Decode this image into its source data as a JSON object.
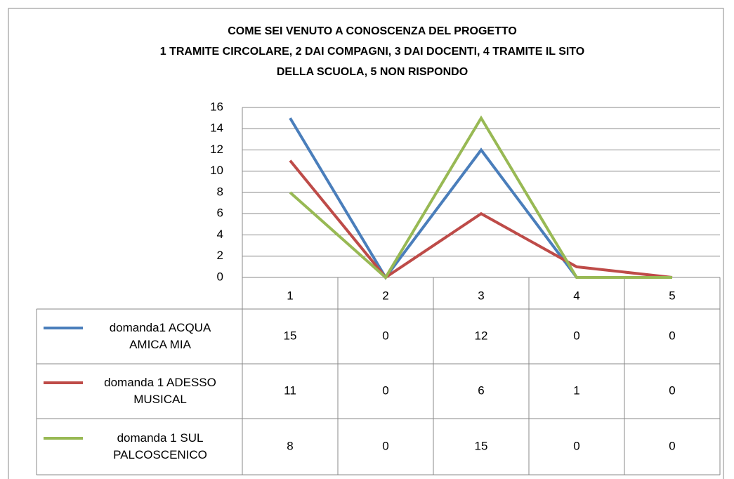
{
  "chart_data": {
    "type": "line",
    "title": [
      "COME SEI VENUTO A CONOSCENZA DEL PROGETTO",
      "1 TRAMITE CIRCOLARE, 2 DAI COMPAGNI, 3 DAI DOCENTI, 4 TRAMITE IL SITO",
      "DELLA SCUOLA, 5 NON RISPONDO"
    ],
    "categories": [
      "1",
      "2",
      "3",
      "4",
      "5"
    ],
    "series": [
      {
        "name": "domanda1 ACQUA AMICA MIA",
        "color": "#4a7ebb",
        "values": [
          15,
          0,
          12,
          0,
          0
        ]
      },
      {
        "name": "domanda 1 ADESSO MUSICAL",
        "color": "#be4b48",
        "values": [
          11,
          0,
          6,
          1,
          0
        ]
      },
      {
        "name": "domanda 1 SUL PALCOSCENICO",
        "color": "#98b954",
        "values": [
          8,
          0,
          15,
          0,
          0
        ]
      }
    ],
    "ylim": [
      0,
      16
    ],
    "yticks": [
      0,
      2,
      4,
      6,
      8,
      10,
      12,
      14,
      16
    ],
    "grid": true
  }
}
